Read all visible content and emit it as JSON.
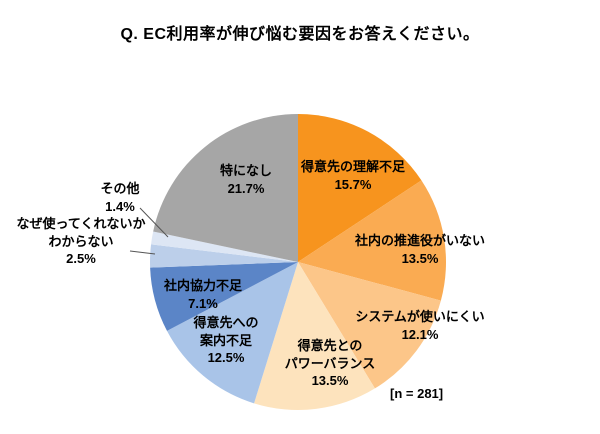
{
  "title": "Q. EC利用率が伸び悩む要因をお答えください。",
  "sample_note": "[n = 281]",
  "chart_data": {
    "type": "pie",
    "title": "Q. EC利用率が伸び悩む要因をお答えください。",
    "sample_size": 281,
    "sample_size_label": "[n = 281]",
    "start_angle_deg": 0,
    "direction": "clockwise",
    "legend_position": "none",
    "slices": [
      {
        "label": "得意先の理解不足",
        "value": 15.7,
        "pct": "15.7%",
        "color": "#F7941E",
        "label_lines": [
          "得意先の理解不足"
        ]
      },
      {
        "label": "社内の推進役がいない",
        "value": 13.5,
        "pct": "13.5%",
        "color": "#FAAB52",
        "label_lines": [
          "社内の推進役がいない"
        ]
      },
      {
        "label": "システムが使いにくい",
        "value": 12.1,
        "pct": "12.1%",
        "color": "#FCC689",
        "label_lines": [
          "システムが使いにくい"
        ]
      },
      {
        "label": "得意先とのパワーバランス",
        "value": 13.5,
        "pct": "13.5%",
        "color": "#FDE3BD",
        "label_lines": [
          "得意先との",
          "パワーバランス"
        ]
      },
      {
        "label": "得意先への案内不足",
        "value": 12.5,
        "pct": "12.5%",
        "color": "#A9C4E8",
        "label_lines": [
          "得意先への",
          "案内不足"
        ]
      },
      {
        "label": "社内協力不足",
        "value": 7.1,
        "pct": "7.1%",
        "color": "#5B85C7",
        "label_lines": [
          "社内協力不足"
        ]
      },
      {
        "label": "なぜ使ってくれないかわからない",
        "value": 2.5,
        "pct": "2.5%",
        "color": "#BCCFEA",
        "label_lines": [
          "なぜ使ってくれないか",
          "わからない"
        ]
      },
      {
        "label": "その他",
        "value": 1.4,
        "pct": "1.4%",
        "color": "#DDE6F4",
        "label_lines": [
          "その他"
        ]
      },
      {
        "label": "特になし",
        "value": 21.7,
        "pct": "21.7%",
        "color": "#A6A6A6",
        "label_lines": [
          "特になし"
        ]
      }
    ]
  }
}
